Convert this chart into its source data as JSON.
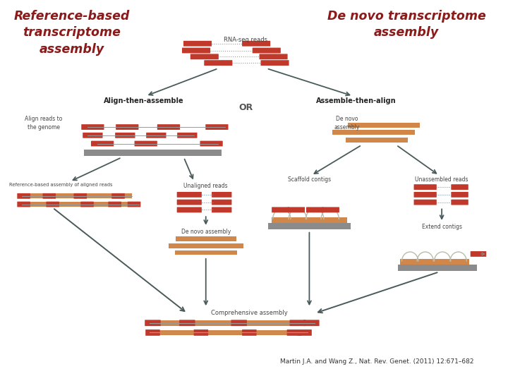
{
  "bg_color": "#ffffff",
  "title_left": "Reference-based\ntranscriptome\nassembly",
  "title_right": "De novo transcriptome\nassembly",
  "title_color": "#8B1A1A",
  "citation": "Martin J.A. and Wang Z., Nat. Rev. Genet. (2011) 12:671–682",
  "label_align_assemble": "Align-then-assemble",
  "label_or": "OR",
  "label_assemble_align": "Assemble-then-align",
  "label_rna_seq": "RNA-seq reads",
  "label_align_reads": "Align reads to\nthe genome",
  "label_ref_assembly": "Reference-based assembly of aligned reads",
  "label_unaligned": "Unaligned reads",
  "label_de_novo_mid": "De novo assembly",
  "label_de_novo_right": "De novo\nassembly",
  "label_scaffold": "Scaffold contigs",
  "label_unassembled": "Unassembled reads",
  "label_extend": "Extend contigs",
  "label_comprehensive": "Comprehensive assembly",
  "red_color": "#C0392B",
  "orange_color": "#D2874A",
  "gray_color": "#8B8B8B",
  "arrow_color": "#4A5A5A",
  "line_color": "#9A9A9A",
  "dot_color": "#9A9A9A"
}
